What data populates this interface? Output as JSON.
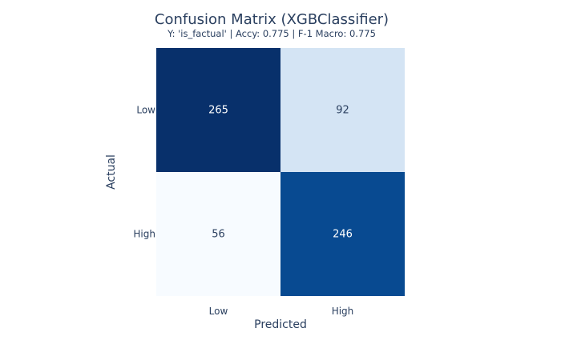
{
  "chart_data": {
    "type": "heatmap",
    "title": "Confusion Matrix (XGBClassifier)",
    "subtitle": "Y: 'is_factual' | Accy: 0.775 | F-1 Macro: 0.775",
    "xlabel": "Predicted",
    "ylabel": "Actual",
    "x_categories": [
      "Low",
      "High"
    ],
    "y_categories": [
      "Low",
      "High"
    ],
    "z": [
      [
        265,
        92
      ],
      [
        56,
        246
      ]
    ],
    "colorscale": "Blues",
    "colors": [
      "#f7fbff",
      "#d4e4f4",
      "#084a91",
      "#08306b"
    ]
  }
}
